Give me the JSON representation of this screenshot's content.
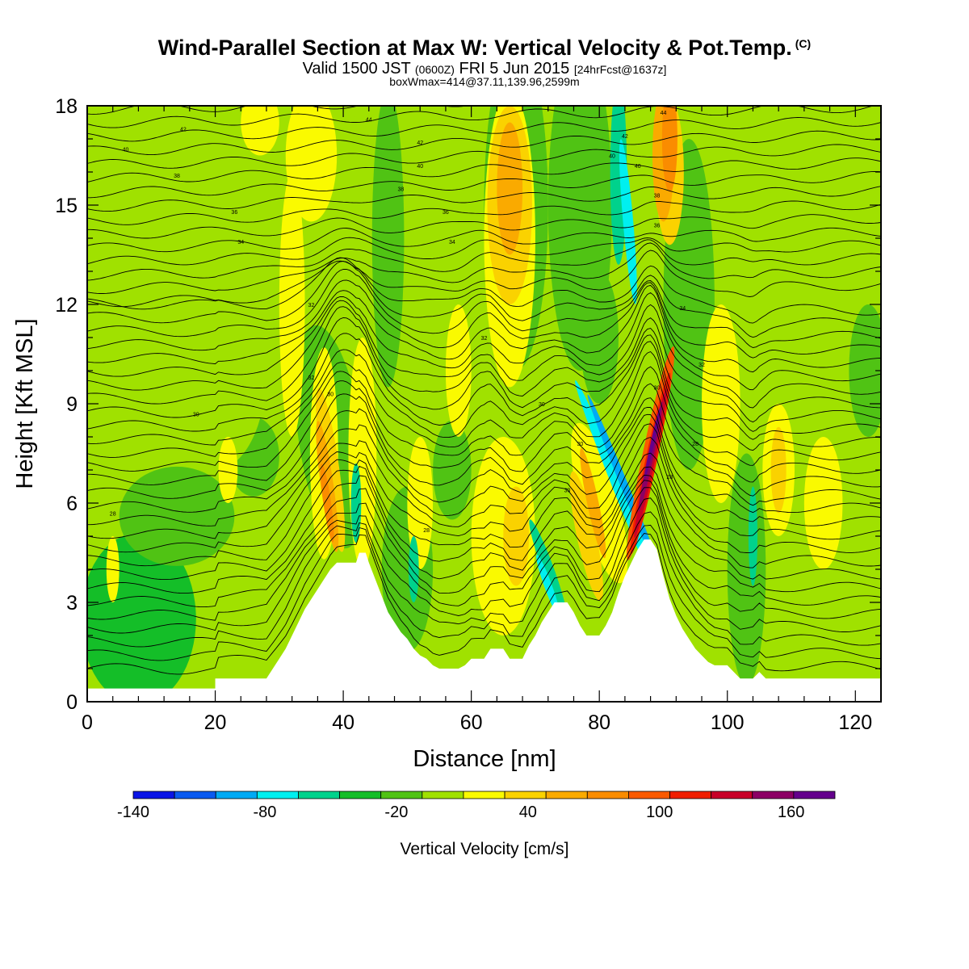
{
  "header": {
    "title": "Wind-Parallel Section at Max W: Vertical Velocity & Pot.Temp.",
    "copyright": "(C)",
    "valid_prefix": "Valid 1500 JST",
    "valid_utc": "(0600Z)",
    "valid_date": "FRI 5 Jun 2015",
    "forecast": "[24hrFcst@1637z]",
    "box_info": "boxWmax=414@37.11,139.96,2599m"
  },
  "chart_data": {
    "type": "heatmap",
    "xlabel": "Distance [nm]",
    "ylabel": "Height [Kft MSL]",
    "xlim": [
      0,
      124
    ],
    "ylim": [
      0,
      18
    ],
    "x_ticks": [
      "0",
      "20",
      "40",
      "60",
      "80",
      "100",
      "120"
    ],
    "y_ticks": [
      "0",
      "3",
      "6",
      "9",
      "12",
      "15",
      "18"
    ],
    "colorbar": {
      "label": "Vertical Velocity [cm/s]",
      "levels": [
        -140,
        -120,
        -100,
        -80,
        -60,
        -40,
        -20,
        0,
        20,
        40,
        60,
        80,
        100,
        120,
        140,
        160,
        180
      ],
      "tick_labels": [
        "-140",
        "-80",
        "-20",
        "40",
        "100",
        "160"
      ],
      "colors": [
        "#0a14e6",
        "#0a5af0",
        "#00aaf5",
        "#00f0f0",
        "#00d28c",
        "#14be28",
        "#50c314",
        "#a0e100",
        "#fafa00",
        "#fad200",
        "#faaa00",
        "#fa8c00",
        "#fa5a00",
        "#f01e00",
        "#c80028",
        "#8c0064",
        "#64008c"
      ]
    },
    "terrain": [
      [
        0,
        0.4
      ],
      [
        20,
        0.4
      ],
      [
        20,
        0.7
      ],
      [
        28,
        0.7
      ],
      [
        29,
        1
      ],
      [
        30,
        1.3
      ],
      [
        31,
        1.6
      ],
      [
        32,
        2
      ],
      [
        33,
        2.4
      ],
      [
        34,
        2.8
      ],
      [
        35,
        3.1
      ],
      [
        36,
        3.4
      ],
      [
        37,
        3.7
      ],
      [
        38,
        4
      ],
      [
        39,
        4.2
      ],
      [
        40,
        4.2
      ],
      [
        41,
        4.2
      ],
      [
        42,
        4.2
      ],
      [
        42.5,
        4.5
      ],
      [
        43.5,
        4.5
      ],
      [
        44,
        4.2
      ],
      [
        45,
        3.7
      ],
      [
        46,
        3.2
      ],
      [
        47,
        2.7
      ],
      [
        48,
        2.4
      ],
      [
        49,
        2.1
      ],
      [
        50,
        1.9
      ],
      [
        51,
        1.6
      ],
      [
        52,
        1.4
      ],
      [
        53,
        1.3
      ],
      [
        54,
        1.1
      ],
      [
        55,
        1
      ],
      [
        56,
        1
      ],
      [
        57,
        1
      ],
      [
        58,
        1
      ],
      [
        59,
        1.1
      ],
      [
        60,
        1.3
      ],
      [
        62,
        1.3
      ],
      [
        63,
        1.6
      ],
      [
        65,
        1.6
      ],
      [
        66,
        1.3
      ],
      [
        68,
        1.3
      ],
      [
        69,
        1.7
      ],
      [
        70,
        2
      ],
      [
        71,
        2.4
      ],
      [
        72,
        2.7
      ],
      [
        73,
        3
      ],
      [
        75,
        3
      ],
      [
        76,
        2.7
      ],
      [
        77,
        2.3
      ],
      [
        78,
        2
      ],
      [
        80,
        2
      ],
      [
        81,
        2.3
      ],
      [
        82,
        2.7
      ],
      [
        83,
        3.3
      ],
      [
        84,
        3.8
      ],
      [
        85,
        4.2
      ],
      [
        86,
        4.6
      ],
      [
        87,
        4.9
      ],
      [
        88,
        4.9
      ],
      [
        89,
        4.6
      ],
      [
        90,
        3.8
      ],
      [
        91,
        3.1
      ],
      [
        92,
        2.6
      ],
      [
        93,
        2.2
      ],
      [
        94,
        1.9
      ],
      [
        95,
        1.6
      ],
      [
        96,
        1.4
      ],
      [
        97,
        1.2
      ],
      [
        98,
        1.1
      ],
      [
        100,
        1.1
      ],
      [
        101,
        0.9
      ],
      [
        102,
        0.7
      ],
      [
        104,
        0.7
      ],
      [
        105,
        0.9
      ],
      [
        106,
        0.7
      ],
      [
        110,
        0.7
      ],
      [
        112,
        0.7
      ],
      [
        118,
        0.7
      ],
      [
        120,
        0.7
      ],
      [
        124,
        0.7
      ]
    ],
    "theta_contour_labels": [
      {
        "x": 15,
        "y": 17.3,
        "text": "42"
      },
      {
        "x": 6,
        "y": 16.7,
        "text": "40"
      },
      {
        "x": 14,
        "y": 15.9,
        "text": "38"
      },
      {
        "x": 23,
        "y": 14.8,
        "text": "36"
      },
      {
        "x": 24,
        "y": 13.9,
        "text": "34"
      },
      {
        "x": 35,
        "y": 12.0,
        "text": "32"
      },
      {
        "x": 35,
        "y": 9.8,
        "text": "32"
      },
      {
        "x": 38,
        "y": 9.3,
        "text": "30"
      },
      {
        "x": 17,
        "y": 8.7,
        "text": "30"
      },
      {
        "x": 4,
        "y": 5.7,
        "text": "28"
      },
      {
        "x": 44,
        "y": 17.6,
        "text": "44"
      },
      {
        "x": 52,
        "y": 16.9,
        "text": "42"
      },
      {
        "x": 52,
        "y": 16.2,
        "text": "40"
      },
      {
        "x": 49,
        "y": 15.5,
        "text": "38"
      },
      {
        "x": 56,
        "y": 14.8,
        "text": "36"
      },
      {
        "x": 57,
        "y": 13.9,
        "text": "34"
      },
      {
        "x": 62,
        "y": 11.0,
        "text": "32"
      },
      {
        "x": 71,
        "y": 9.0,
        "text": "30"
      },
      {
        "x": 77,
        "y": 7.8,
        "text": "30"
      },
      {
        "x": 75,
        "y": 6.4,
        "text": "30"
      },
      {
        "x": 53,
        "y": 5.2,
        "text": "28"
      },
      {
        "x": 90,
        "y": 17.8,
        "text": "44"
      },
      {
        "x": 84,
        "y": 17.1,
        "text": "42"
      },
      {
        "x": 82,
        "y": 16.5,
        "text": "40"
      },
      {
        "x": 86,
        "y": 16.2,
        "text": "40"
      },
      {
        "x": 89,
        "y": 15.3,
        "text": "38"
      },
      {
        "x": 89,
        "y": 14.4,
        "text": "36"
      },
      {
        "x": 93,
        "y": 11.9,
        "text": "34"
      },
      {
        "x": 96,
        "y": 10.2,
        "text": "32"
      },
      {
        "x": 89,
        "y": 9.5,
        "text": "30"
      },
      {
        "x": 95,
        "y": 7.8,
        "text": "28"
      },
      {
        "x": 91,
        "y": 6.8,
        "text": "28"
      }
    ]
  }
}
